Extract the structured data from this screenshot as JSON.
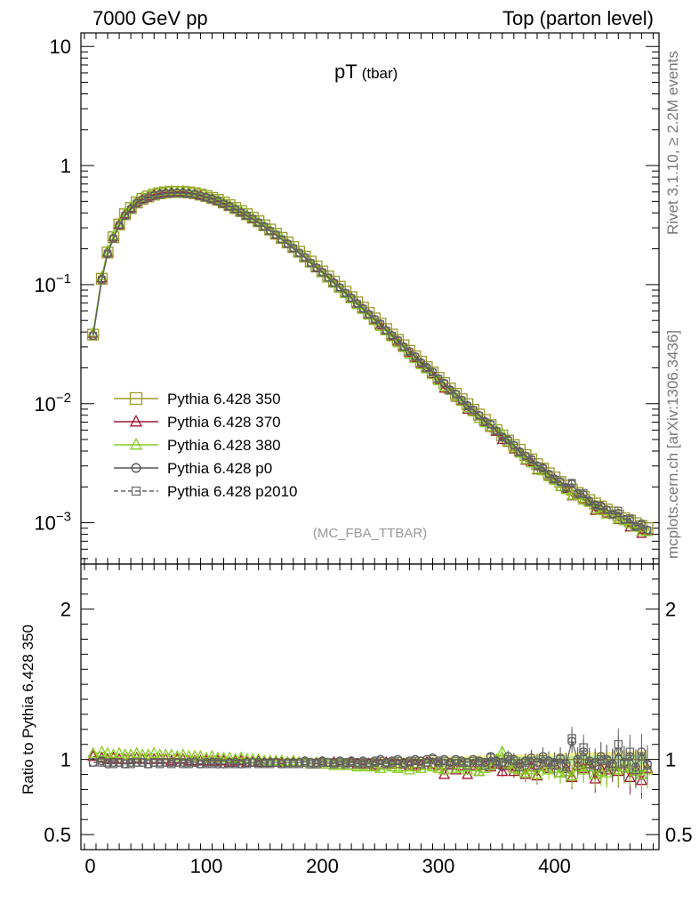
{
  "header": {
    "left": "7000 GeV pp",
    "right": "Top (parton level)"
  },
  "plot_title": {
    "main": "pT",
    "sub": "(tbar)"
  },
  "side_text": {
    "rivet": "Rivet 3.1.10, ≥ 2.2M events",
    "mcplots": "mcplots.cern.ch [arXiv:1306.3436]"
  },
  "annotation": "(MC_FBA_TTBAR)",
  "ratio_ylabel": "Ratio to Pythia 6.428 350",
  "colors": {
    "s350": "#9a9a2a",
    "s370": "#a01830",
    "s380": "#88cc22",
    "p0": "#555555",
    "p2010": "#666666",
    "band": "#f5f07a",
    "band2": "#aee8a0"
  },
  "chart_data": [
    {
      "type": "line",
      "yscale": "log",
      "xlim": [
        -8,
        490
      ],
      "ylim": [
        0.00045,
        13
      ],
      "x_ticks": [
        0,
        100,
        200,
        300,
        400
      ],
      "y_tick_labels": [
        {
          "value": 10,
          "base": "10",
          "exp": ""
        },
        {
          "value": 1,
          "base": "1",
          "exp": ""
        },
        {
          "value": 0.1,
          "base": "10",
          "exp": "−1"
        },
        {
          "value": 0.01,
          "base": "10",
          "exp": "−2"
        },
        {
          "value": 0.001,
          "base": "10",
          "exp": "−3"
        }
      ],
      "x": [
        2.5,
        10,
        15,
        20,
        25,
        30,
        35,
        40,
        45,
        50,
        55,
        60,
        65,
        70,
        75,
        80,
        85,
        90,
        95,
        100,
        105,
        110,
        115,
        120,
        125,
        130,
        135,
        140,
        145,
        150,
        155,
        160,
        165,
        170,
        175,
        180,
        185,
        190,
        195,
        200,
        205,
        210,
        215,
        220,
        225,
        230,
        235,
        240,
        245,
        250,
        255,
        260,
        265,
        270,
        275,
        280,
        285,
        290,
        295,
        300,
        305,
        310,
        315,
        320,
        325,
        330,
        335,
        340,
        345,
        350,
        355,
        360,
        365,
        370,
        375,
        380,
        385,
        390,
        395,
        400,
        405,
        410,
        415,
        420,
        425,
        430,
        435,
        440,
        445,
        450,
        455,
        460,
        465,
        470,
        475,
        480
      ],
      "values": [
        0.038,
        0.112,
        0.186,
        0.25,
        0.32,
        0.39,
        0.44,
        0.49,
        0.525,
        0.55,
        0.57,
        0.585,
        0.595,
        0.6,
        0.6,
        0.6,
        0.595,
        0.585,
        0.57,
        0.555,
        0.535,
        0.515,
        0.49,
        0.465,
        0.44,
        0.415,
        0.39,
        0.365,
        0.34,
        0.315,
        0.29,
        0.268,
        0.247,
        0.226,
        0.207,
        0.189,
        0.172,
        0.156,
        0.142,
        0.129,
        0.117,
        0.106,
        0.096,
        0.087,
        0.0785,
        0.071,
        0.064,
        0.0578,
        0.052,
        0.047,
        0.0423,
        0.038,
        0.0343,
        0.0309,
        0.0278,
        0.025,
        0.0225,
        0.0203,
        0.0183,
        0.0165,
        0.0149,
        0.0134,
        0.0121,
        0.0109,
        0.0099,
        0.0089,
        0.0081,
        0.0073,
        0.0066,
        0.006,
        0.0054,
        0.0049,
        0.0045,
        0.0041,
        0.0037,
        0.0034,
        0.0031,
        0.00285,
        0.0026,
        0.0024,
        0.0022,
        0.00205,
        0.0019,
        0.00178,
        0.00165,
        0.00155,
        0.00145,
        0.00137,
        0.00129,
        0.00122,
        0.00115,
        0.00109,
        0.00104,
        0.00099,
        0.00094,
        0.0009
      ],
      "series": [
        {
          "name": "Pythia 6.428 350",
          "key": "s350",
          "marker": "square-open",
          "line": "solid"
        },
        {
          "name": "Pythia 6.428 370",
          "key": "s370",
          "marker": "triangle-open",
          "line": "solid"
        },
        {
          "name": "Pythia 6.428 380",
          "key": "s380",
          "marker": "triangle-open",
          "line": "solid"
        },
        {
          "name": "Pythia 6.428 p0",
          "key": "p0",
          "marker": "circle-open",
          "line": "solid"
        },
        {
          "name": "Pythia 6.428 p2010",
          "key": "p2010",
          "marker": "square-open-small",
          "line": "dashed"
        }
      ],
      "legend": "lower-left"
    },
    {
      "type": "scatter",
      "xlim": [
        -8,
        490
      ],
      "ylim": [
        0.4,
        2.3
      ],
      "x_ticks": [
        0,
        100,
        200,
        300,
        400
      ],
      "y_ticks": [
        0.5,
        1,
        2
      ],
      "ylabel": "Ratio to Pythia 6.428 350",
      "x": [
        2.5,
        10,
        15,
        20,
        25,
        30,
        35,
        40,
        45,
        50,
        55,
        60,
        65,
        70,
        75,
        80,
        85,
        90,
        95,
        100,
        105,
        110,
        115,
        120,
        125,
        130,
        135,
        140,
        145,
        150,
        155,
        160,
        165,
        170,
        175,
        180,
        185,
        190,
        195,
        200,
        205,
        210,
        215,
        220,
        225,
        230,
        235,
        240,
        245,
        250,
        255,
        260,
        265,
        270,
        275,
        280,
        285,
        290,
        295,
        300,
        305,
        310,
        315,
        320,
        325,
        330,
        335,
        340,
        345,
        350,
        355,
        360,
        365,
        370,
        375,
        380,
        385,
        390,
        395,
        400,
        405,
        410,
        415,
        420,
        425,
        430,
        435,
        440,
        445,
        450,
        455,
        460,
        465,
        470,
        475,
        480
      ],
      "series": [
        {
          "name": "Pythia 6.428 370",
          "key": "s370",
          "values": [
            1.02,
            1.01,
            1.0,
            1.01,
            1.0,
            1.0,
            1.0,
            1.01,
            1.0,
            1.0,
            1.0,
            1.0,
            1.0,
            0.99,
            1.0,
            1.0,
            0.99,
            0.99,
            0.99,
            0.99,
            0.99,
            0.99,
            0.99,
            0.98,
            0.99,
            0.99,
            0.98,
            0.98,
            0.99,
            0.98,
            0.98,
            0.98,
            0.98,
            0.98,
            0.98,
            0.98,
            0.98,
            0.97,
            0.97,
            0.98,
            0.97,
            0.98,
            0.97,
            0.96,
            0.98,
            0.97,
            0.97,
            0.97,
            0.96,
            0.97,
            0.98,
            0.97,
            0.97,
            0.97,
            0.96,
            0.97,
            0.96,
            0.98,
            0.97,
            0.96,
            0.9,
            0.97,
            0.93,
            0.96,
            0.9,
            0.96,
            0.92,
            0.96,
            0.95,
            0.97,
            0.92,
            0.96,
            0.92,
            0.95,
            0.9,
            0.95,
            0.89,
            0.96,
            0.94,
            0.97,
            0.91,
            0.94,
            0.88,
            0.96,
            0.94,
            0.97,
            0.87,
            0.94,
            0.93,
            0.96,
            0.92,
            0.95,
            0.88,
            0.93,
            0.86,
            0.94
          ]
        },
        {
          "name": "Pythia 6.428 380",
          "key": "s380",
          "values": [
            1.04,
            1.05,
            1.04,
            1.03,
            1.04,
            1.03,
            1.03,
            1.04,
            1.03,
            1.03,
            1.04,
            1.03,
            1.03,
            1.03,
            1.02,
            1.03,
            1.02,
            1.02,
            1.02,
            1.01,
            1.02,
            1.01,
            1.01,
            1.01,
            1.0,
            1.01,
            1.0,
            1.0,
            1.0,
            0.99,
            0.99,
            0.99,
            0.99,
            0.98,
            0.99,
            0.98,
            0.98,
            0.97,
            0.98,
            0.97,
            0.97,
            0.96,
            0.97,
            0.96,
            0.96,
            0.95,
            0.96,
            0.95,
            0.95,
            0.94,
            0.96,
            0.95,
            0.94,
            0.95,
            0.93,
            0.95,
            0.94,
            0.96,
            0.95,
            0.94,
            0.93,
            0.96,
            0.94,
            0.95,
            0.93,
            0.95,
            0.92,
            0.94,
            0.96,
            1.0,
            1.05,
            0.97,
            0.94,
            0.93,
            0.91,
            0.93,
            0.9,
            0.95,
            0.93,
            0.94,
            0.91,
            0.92,
            0.89,
            0.95,
            0.93,
            0.95,
            0.9,
            0.92,
            0.91,
            0.96,
            0.93,
            0.95,
            0.94,
            0.92,
            0.9,
            0.93
          ]
        },
        {
          "name": "Pythia 6.428 p0",
          "key": "p0",
          "values": [
            0.98,
            0.99,
            0.97,
            0.98,
            0.98,
            0.97,
            0.98,
            0.98,
            0.98,
            0.97,
            0.98,
            0.98,
            0.98,
            0.98,
            0.98,
            0.98,
            0.98,
            0.98,
            0.97,
            0.98,
            0.98,
            0.97,
            0.97,
            0.98,
            0.98,
            0.97,
            0.98,
            0.98,
            0.98,
            0.98,
            0.98,
            0.98,
            0.97,
            0.98,
            0.98,
            0.98,
            0.99,
            0.98,
            0.98,
            0.99,
            0.98,
            0.98,
            0.99,
            0.98,
            0.99,
            0.98,
            0.99,
            0.98,
            0.99,
            1.0,
            0.98,
            0.99,
            1.0,
            0.98,
            0.99,
            1.0,
            0.99,
            1.0,
            1.01,
            0.99,
            1.0,
            0.98,
            1.0,
            0.99,
            0.98,
            1.0,
            0.99,
            0.98,
            1.02,
            0.99,
            0.98,
            1.02,
            1.0,
            0.97,
            0.99,
            1.01,
            0.98,
            1.02,
            0.99,
            0.98,
            1.01,
            0.97,
            1.12,
            1.0,
            1.05,
            0.99,
            0.98,
            1.02,
            1.0,
            0.97,
            1.05,
            0.98,
            1.02,
            0.95,
            1.05,
            0.97
          ]
        },
        {
          "name": "Pythia 6.428 p2010",
          "key": "p2010",
          "values": [
            0.98,
            0.98,
            0.98,
            0.97,
            0.98,
            0.97,
            0.97,
            0.98,
            0.98,
            0.97,
            0.98,
            0.97,
            0.98,
            0.97,
            0.98,
            0.97,
            0.97,
            0.98,
            0.97,
            0.97,
            0.97,
            0.98,
            0.97,
            0.97,
            0.97,
            0.97,
            0.97,
            0.98,
            0.97,
            0.97,
            0.97,
            0.98,
            0.97,
            0.97,
            0.97,
            0.97,
            0.98,
            0.97,
            0.97,
            0.98,
            0.98,
            0.97,
            0.98,
            0.97,
            0.98,
            0.97,
            0.98,
            0.97,
            0.98,
            0.99,
            0.97,
            0.98,
            0.99,
            0.97,
            0.98,
            0.99,
            0.97,
            0.98,
            1.0,
            0.98,
            0.99,
            0.96,
            0.99,
            0.98,
            0.96,
            0.99,
            0.98,
            0.96,
            1.01,
            0.98,
            0.96,
            1.0,
            0.99,
            0.95,
            0.98,
            0.99,
            0.96,
            1.0,
            0.98,
            0.96,
            1.0,
            0.95,
            1.14,
            0.98,
            1.08,
            0.97,
            0.96,
            1.0,
            0.99,
            0.95,
            1.1,
            0.97,
            1.05,
            0.93,
            1.02,
            0.96
          ]
        }
      ]
    }
  ]
}
